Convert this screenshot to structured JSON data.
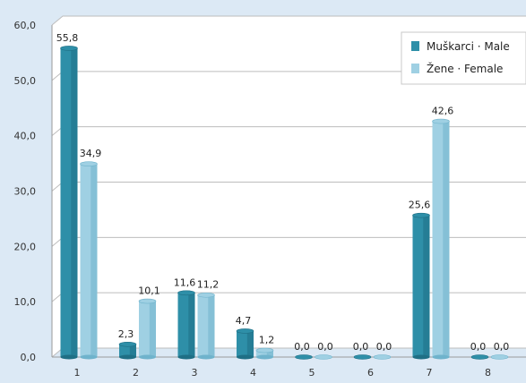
{
  "chart_data": {
    "type": "bar",
    "categories": [
      "1",
      "2",
      "3",
      "4",
      "5",
      "6",
      "7",
      "8"
    ],
    "series": [
      {
        "name": "Muškarci · Male",
        "values": [
          55.8,
          2.3,
          11.6,
          4.7,
          0.0,
          0.0,
          25.6,
          0.0
        ],
        "labels": [
          "55,8",
          "2,3",
          "11,6",
          "4,7",
          "0,0",
          "0,0",
          "25,6",
          "0,0"
        ],
        "color": "#2e8fa8"
      },
      {
        "name": "Žene · Female",
        "values": [
          34.9,
          10.1,
          11.2,
          1.2,
          0.0,
          0.0,
          42.6,
          0.0
        ],
        "labels": [
          "34,9",
          "10,1",
          "11,2",
          "1,2",
          "0,0",
          "0,0",
          "42,6",
          "0,0"
        ],
        "color": "#9fd0e3"
      }
    ],
    "y_ticks": [
      "0,0",
      "10,0",
      "20,0",
      "30,0",
      "40,0",
      "50,0",
      "60,0"
    ],
    "ylim": [
      0,
      60
    ],
    "grid": true,
    "legend": "top-right"
  }
}
